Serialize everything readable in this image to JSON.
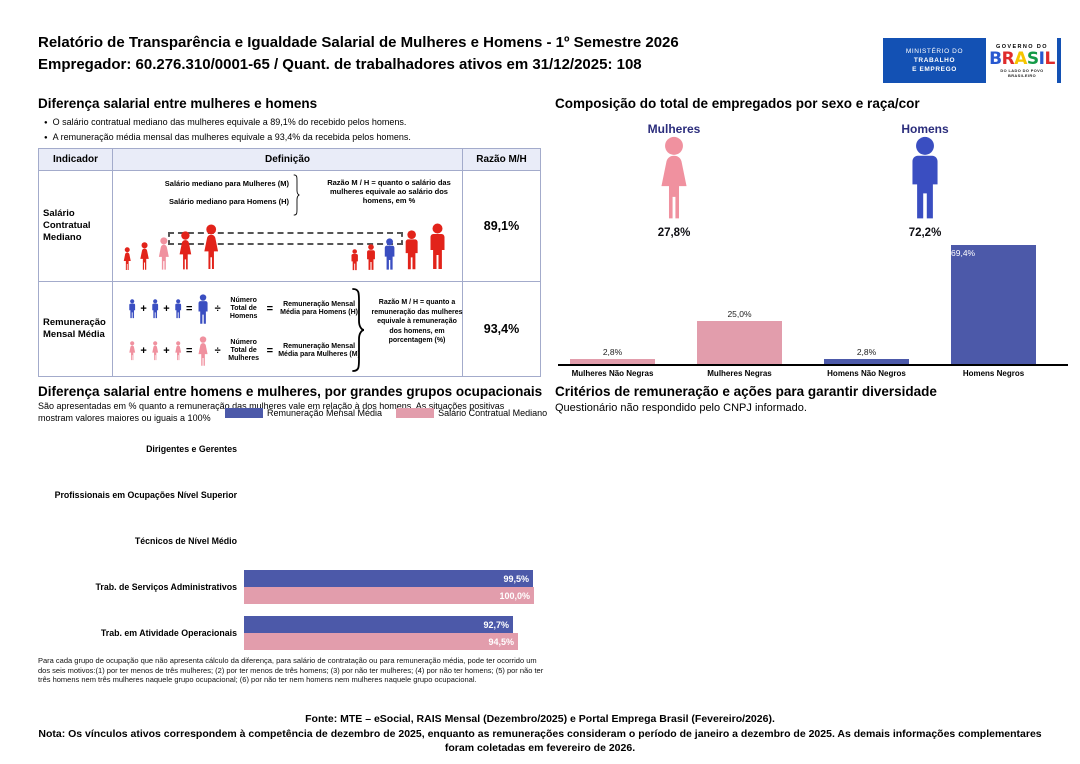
{
  "colors": {
    "red": "#E2231A",
    "pink": "#F0919F",
    "blue": "#3A4EC1",
    "bar_blue": "#4C59A9",
    "bar_pink": "#E29DAC",
    "navy": "#2B2D7C",
    "gov_blue": "#1351B4"
  },
  "header": {
    "title_line1": "Relatório de Transparência e Igualdade Salarial de Mulheres e Homens - 1º Semestre 2026",
    "title_line2": "Empregador: 60.276.310/0001-65 / Quant. de trabalhadores ativos em 31/12/2025: 108",
    "mte_logo_lines": [
      "MINISTÉRIO DO",
      "TRABALHO",
      "E EMPREGO"
    ],
    "gov_logo": {
      "top": "GOVERNO DO",
      "brand_letters": [
        {
          "ch": "B",
          "color": "#2758D0"
        },
        {
          "ch": "R",
          "color": "#DF2B2B"
        },
        {
          "ch": "A",
          "color": "#F6C500"
        },
        {
          "ch": "S",
          "color": "#149A47"
        },
        {
          "ch": "I",
          "color": "#2758D0"
        },
        {
          "ch": "L",
          "color": "#DF2B2B"
        }
      ],
      "bottom": "DO LADO DO POVO BRASILEIRO"
    }
  },
  "operators": {
    "plus": "+",
    "equals": "=",
    "divide": "÷"
  },
  "salary_gap": {
    "title": "Diferença salarial entre mulheres e homens",
    "bullets": [
      "O salário contratual mediano das mulheres equivale a 89,1% do recebido pelos homens.",
      "A remuneração média mensal das mulheres equivale a 93,4% da recebida pelos homens."
    ],
    "table": {
      "headers": [
        "Indicador",
        "Definição",
        "Razão M/H"
      ],
      "rows": [
        {
          "indicator": "Salário Contratual Mediano",
          "def_line1": "Salário mediano para Mulheres (M)",
          "def_line2": "Salário mediano para Homens (H)",
          "note": "Razão M / H = quanto o salário das mulheres equivale ao salário dos homens, em %",
          "ratio": "89,1%",
          "women": [
            {
              "h": 24,
              "color": "red"
            },
            {
              "h": 29,
              "color": "red"
            },
            {
              "h": 34,
              "color": "pink"
            },
            {
              "h": 40,
              "color": "red"
            },
            {
              "h": 47,
              "color": "red"
            }
          ],
          "men": [
            {
              "h": 22,
              "color": "red"
            },
            {
              "h": 27,
              "color": "red"
            },
            {
              "h": 33,
              "color": "blue"
            },
            {
              "h": 41,
              "color": "red"
            },
            {
              "h": 48,
              "color": "red"
            }
          ]
        },
        {
          "indicator": "Remuneração Mensal Média",
          "men_line": {
            "divisor": "Número Total de Homens",
            "result": "Remuneração Mensal Média para Homens (H)"
          },
          "women_line": {
            "divisor": "Número Total de Mulheres",
            "result": "Remuneração Mensal Média para Mulheres (M)"
          },
          "note": "Razão M / H = quanto a remuneração das mulheres equivale à remuneração dos homens, em porcentagem (%)",
          "ratio": "93,4%"
        }
      ]
    }
  },
  "composition": {
    "title": "Composição do total de empregados por sexo e raça/cor",
    "pictograms": [
      {
        "label": "Mulheres",
        "value": "27,8%",
        "icon": "woman-icon",
        "color": "pink"
      },
      {
        "label": "Homens",
        "value": "72,2%",
        "icon": "man-icon",
        "color": "blue"
      }
    ]
  },
  "occupational": {
    "title": "Diferença salarial entre homens e mulheres, por grandes grupos ocupacionais",
    "subtitle": "São apresentadas em % quanto a remuneração das mulheres vale em relação à dos homens. As situações positivas mostram valores maiores ou iguais a 100%",
    "legend": [
      {
        "label": "Remuneração Mensal Média",
        "color": "#4C59A9"
      },
      {
        "label": "Salário Contratual Mediano",
        "color": "#E29DAC"
      }
    ],
    "footnote": "Para cada grupo de ocupação que não apresenta cálculo da diferença, para salário de contratação ou para remuneração média, pode ter ocorrido um dos seis motivos:(1) por ter menos de três mulheres; (2) por ter menos de três homens; (3) por não ter mulheres; (4) por não ter homens; (5) por não ter três homens nem três mulheres naquele grupo ocupacional; (6) por não ter nem homens nem mulheres naquele grupo ocupacional."
  },
  "criteria": {
    "title": "Critérios de remuneração e ações para garantir diversidade",
    "text": "Questionário não respondido pelo CNPJ informado."
  },
  "footer": {
    "fonte": "Fonte: MTE – eSocial, RAIS Mensal (Dezembro/2025) e Portal Emprega Brasil (Fevereiro/2026).",
    "nota": "Nota: Os vínculos ativos correspondem à competência de dezembro de 2025, enquanto as remunerações consideram o período de janeiro a dezembro de 2025. As demais informações complementares foram coletadas em fevereiro de 2026."
  },
  "chart_data": [
    {
      "type": "bar",
      "title": "Composição do total de empregados por sexo e raça/cor",
      "categories": [
        "Mulheres Não Negras",
        "Mulheres Negras",
        "Homens Não Negros",
        "Homens Negros"
      ],
      "values": [
        2.8,
        25.0,
        2.8,
        69.4
      ],
      "value_labels": [
        "2,8%",
        "25,0%",
        "2,8%",
        "69,4%"
      ],
      "colors": [
        "#E29DAC",
        "#E29DAC",
        "#4C59A9",
        "#4C59A9"
      ],
      "label_inside": [
        false,
        false,
        false,
        true
      ],
      "ylim": [
        0,
        70
      ],
      "grid": false,
      "extra": {
        "mulheres_total": 27.8,
        "homens_total": 72.2
      }
    },
    {
      "type": "bar",
      "orientation": "horizontal",
      "title": "Diferença salarial entre homens e mulheres, por grandes grupos ocupacionais",
      "categories": [
        "Dirigentes e Gerentes",
        "Profissionais em Ocupações Nível Superior",
        "Técnicos de Nível Médio",
        "Trab. de Serviços Administrativos",
        "Trab. em Atividade Operacionais"
      ],
      "series": [
        {
          "name": "Remuneração Mensal Média",
          "color": "#4C59A9",
          "values": [
            null,
            null,
            null,
            99.5,
            92.7
          ],
          "value_labels": [
            "",
            "",
            "",
            "99,5%",
            "92,7%"
          ]
        },
        {
          "name": "Salário Contratual Mediano",
          "color": "#E29DAC",
          "values": [
            null,
            null,
            null,
            100.0,
            94.5
          ],
          "value_labels": [
            "",
            "",
            "",
            "100,0%",
            "94,5%"
          ]
        }
      ],
      "xlim": [
        0,
        100
      ],
      "legend_position": "top",
      "grid": false
    }
  ]
}
